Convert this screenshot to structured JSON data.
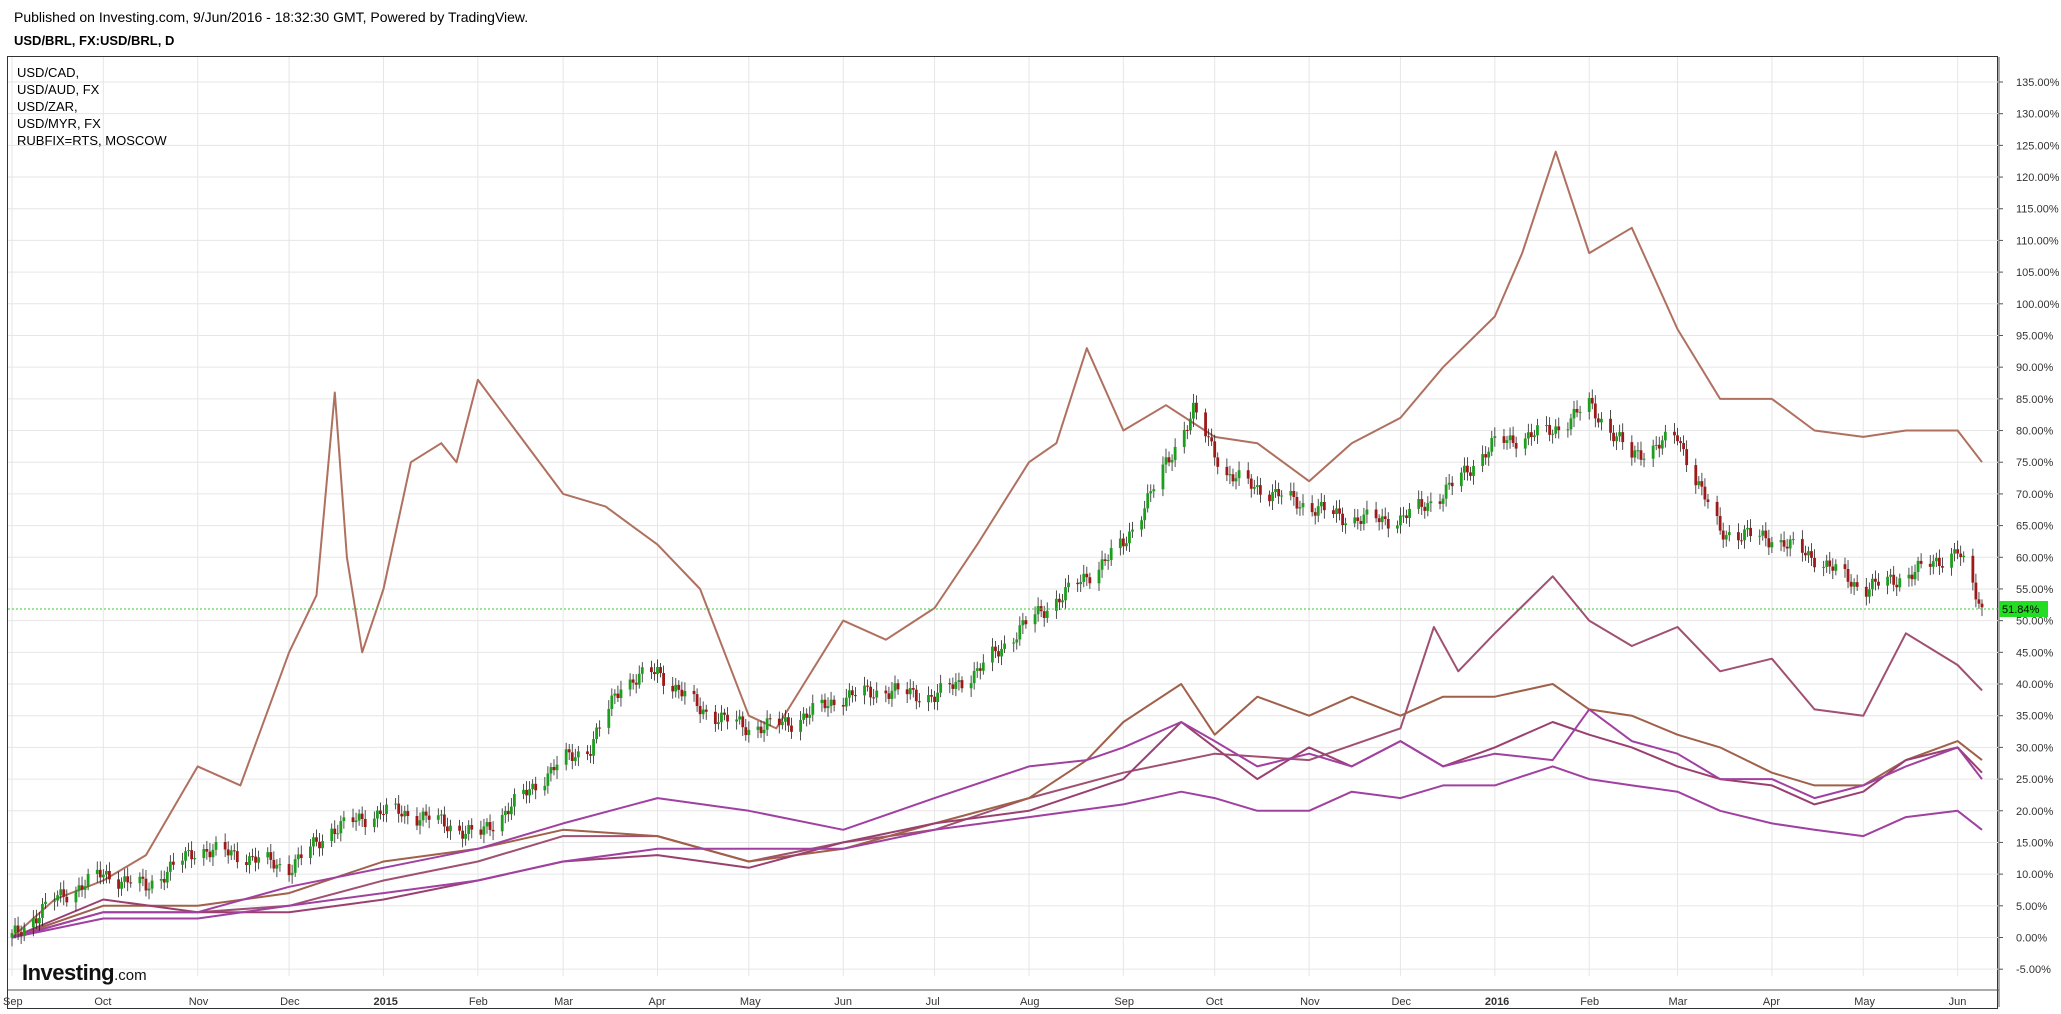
{
  "header": {
    "published": "Published on Investing.com, 9/Jun/2016 - 18:32:30 GMT, Powered by TradingView.",
    "symbol_title": "USD/BRL, FX:USD/BRL, D"
  },
  "legend": [
    "USD/CAD,",
    "USD/AUD, FX",
    "USD/ZAR,",
    "USD/MYR, FX",
    "RUBFIX=RTS, MOSCOW"
  ],
  "logo": {
    "brand": "Investing",
    "suffix": ".com"
  },
  "chart_data": {
    "type": "line",
    "title": "USD/BRL, FX:USD/BRL, D",
    "ylabel": "",
    "y_unit": "%",
    "ylim": [
      -7,
      138
    ],
    "y_ticks": [
      -5,
      0,
      5,
      10,
      15,
      20,
      25,
      30,
      35,
      40,
      45,
      50,
      55,
      60,
      65,
      70,
      75,
      80,
      85,
      90,
      95,
      100,
      105,
      110,
      115,
      120,
      125,
      130,
      135
    ],
    "y_tick_labels": [
      "-5.00%",
      "0.00%",
      "5.00%",
      "10.00%",
      "15.00%",
      "20.00%",
      "25.00%",
      "30.00%",
      "35.00%",
      "40.00%",
      "45.00%",
      "50.00%",
      "55.00%",
      "60.00%",
      "65.00%",
      "70.00%",
      "75.00%",
      "80.00%",
      "85.00%",
      "90.00%",
      "95.00%",
      "100.00%",
      "105.00%",
      "110.00%",
      "115.00%",
      "120.00%",
      "125.00%",
      "130.00%",
      "135.00%"
    ],
    "x_start": "2014-09-01",
    "x_end": "2016-06-09",
    "x_ticks": [
      {
        "label": "Sep",
        "date": "2014-09-01",
        "bold": false
      },
      {
        "label": "Oct",
        "date": "2014-10-01",
        "bold": false
      },
      {
        "label": "Nov",
        "date": "2014-11-01",
        "bold": false
      },
      {
        "label": "Dec",
        "date": "2014-12-01",
        "bold": false
      },
      {
        "label": "2015",
        "date": "2015-01-01",
        "bold": true
      },
      {
        "label": "Feb",
        "date": "2015-02-01",
        "bold": false
      },
      {
        "label": "Mar",
        "date": "2015-03-01",
        "bold": false
      },
      {
        "label": "Apr",
        "date": "2015-04-01",
        "bold": false
      },
      {
        "label": "May",
        "date": "2015-05-01",
        "bold": false
      },
      {
        "label": "Jun",
        "date": "2015-06-01",
        "bold": false
      },
      {
        "label": "Jul",
        "date": "2015-07-01",
        "bold": false
      },
      {
        "label": "Aug",
        "date": "2015-08-01",
        "bold": false
      },
      {
        "label": "Sep",
        "date": "2015-09-01",
        "bold": false
      },
      {
        "label": "Oct",
        "date": "2015-10-01",
        "bold": false
      },
      {
        "label": "Nov",
        "date": "2015-11-01",
        "bold": false
      },
      {
        "label": "Dec",
        "date": "2015-12-01",
        "bold": false
      },
      {
        "label": "2016",
        "date": "2016-01-01",
        "bold": true
      },
      {
        "label": "Feb",
        "date": "2016-02-01",
        "bold": false
      },
      {
        "label": "Mar",
        "date": "2016-03-01",
        "bold": false
      },
      {
        "label": "Apr",
        "date": "2016-04-01",
        "bold": false
      },
      {
        "label": "May",
        "date": "2016-05-01",
        "bold": false
      },
      {
        "label": "Jun",
        "date": "2016-06-01",
        "bold": false
      }
    ],
    "grid": true,
    "current_value": 51.84,
    "current_value_label": "51.84%",
    "colors": {
      "candle_up": "#1e9e1e",
      "candle_down": "#9e1a1a",
      "current_line": "#33cc33",
      "current_badge": "#22dd22",
      "grid": "#e6e6e6"
    },
    "series": [
      {
        "type": "candlestick",
        "color": "#1e9e1e",
        "x": [
          "2014-09-01",
          "2014-09-15",
          "2014-10-01",
          "2014-10-15",
          "2014-11-01",
          "2014-11-15",
          "2014-12-01",
          "2014-12-15",
          "2015-01-01",
          "2015-01-15",
          "2015-02-01",
          "2015-02-15",
          "2015-03-01",
          "2015-03-10",
          "2015-03-20",
          "2015-04-01",
          "2015-04-15",
          "2015-05-01",
          "2015-05-15",
          "2015-06-01",
          "2015-06-15",
          "2015-07-01",
          "2015-07-15",
          "2015-08-01",
          "2015-08-15",
          "2015-09-01",
          "2015-09-10",
          "2015-09-24",
          "2015-10-05",
          "2015-10-15",
          "2015-11-01",
          "2015-11-15",
          "2015-12-01",
          "2015-12-15",
          "2016-01-01",
          "2016-01-20",
          "2016-02-01",
          "2016-02-15",
          "2016-03-01",
          "2016-03-15",
          "2016-04-01",
          "2016-04-15",
          "2016-05-01",
          "2016-05-15",
          "2016-06-01",
          "2016-06-09"
        ],
        "values": [
          0,
          6,
          10,
          8,
          14,
          13,
          11,
          17,
          20,
          19,
          16,
          22,
          28,
          30,
          40,
          42,
          36,
          33,
          34,
          38,
          39,
          38,
          42,
          50,
          55,
          62,
          70,
          83,
          73,
          71,
          68,
          66,
          66,
          70,
          78,
          80,
          84,
          76,
          79,
          64,
          63,
          60,
          55,
          57,
          61,
          51.84
        ]
      },
      {
        "color": "#b07060",
        "x": [
          "2014-09-01",
          "2014-09-15",
          "2014-10-01",
          "2014-10-15",
          "2014-11-01",
          "2014-11-15",
          "2014-12-01",
          "2014-12-10",
          "2014-12-16",
          "2014-12-20",
          "2014-12-25",
          "2015-01-01",
          "2015-01-10",
          "2015-01-20",
          "2015-01-25",
          "2015-02-01",
          "2015-02-15",
          "2015-03-01",
          "2015-03-15",
          "2015-04-01",
          "2015-04-15",
          "2015-05-01",
          "2015-05-10",
          "2015-06-01",
          "2015-06-15",
          "2015-07-01",
          "2015-07-15",
          "2015-08-01",
          "2015-08-10",
          "2015-08-20",
          "2015-09-01",
          "2015-09-15",
          "2015-10-01",
          "2015-10-15",
          "2015-11-01",
          "2015-11-15",
          "2015-12-01",
          "2015-12-15",
          "2016-01-01",
          "2016-01-10",
          "2016-01-21",
          "2016-02-01",
          "2016-02-15",
          "2016-03-01",
          "2016-03-15",
          "2016-04-01",
          "2016-04-15",
          "2016-05-01",
          "2016-05-15",
          "2016-06-01",
          "2016-06-09"
        ],
        "values": [
          0,
          6,
          9,
          13,
          27,
          24,
          45,
          54,
          86,
          60,
          45,
          55,
          75,
          78,
          75,
          88,
          79,
          70,
          68,
          62,
          55,
          35,
          33,
          50,
          47,
          52,
          62,
          75,
          78,
          93,
          80,
          84,
          79,
          78,
          72,
          78,
          82,
          90,
          98,
          108,
          124,
          108,
          112,
          96,
          85,
          85,
          80,
          79,
          80,
          80,
          75
        ]
      },
      {
        "color": "#a05070",
        "x": [
          "2014-09-01",
          "2014-10-01",
          "2014-11-01",
          "2014-12-01",
          "2015-01-01",
          "2015-02-01",
          "2015-03-01",
          "2015-04-01",
          "2015-05-01",
          "2015-06-01",
          "2015-07-01",
          "2015-08-01",
          "2015-09-01",
          "2015-10-01",
          "2015-11-01",
          "2015-12-01",
          "2015-12-12",
          "2015-12-20",
          "2016-01-01",
          "2016-01-20",
          "2016-02-01",
          "2016-02-15",
          "2016-03-01",
          "2016-03-15",
          "2016-04-01",
          "2016-04-15",
          "2016-05-01",
          "2016-05-15",
          "2016-06-01",
          "2016-06-09"
        ],
        "values": [
          0,
          4,
          4,
          5,
          9,
          12,
          16,
          16,
          12,
          15,
          17,
          22,
          26,
          29,
          28,
          33,
          49,
          42,
          48,
          57,
          50,
          46,
          49,
          42,
          44,
          36,
          35,
          48,
          43,
          39
        ]
      },
      {
        "color": "#a0604a",
        "x": [
          "2014-09-01",
          "2014-10-01",
          "2014-11-01",
          "2014-12-01",
          "2015-01-01",
          "2015-02-01",
          "2015-03-01",
          "2015-04-01",
          "2015-05-01",
          "2015-06-01",
          "2015-07-01",
          "2015-08-01",
          "2015-08-20",
          "2015-09-01",
          "2015-09-20",
          "2015-10-01",
          "2015-10-15",
          "2015-11-01",
          "2015-11-15",
          "2015-12-01",
          "2015-12-15",
          "2016-01-01",
          "2016-01-20",
          "2016-02-01",
          "2016-02-15",
          "2016-03-01",
          "2016-03-15",
          "2016-04-01",
          "2016-04-15",
          "2016-05-01",
          "2016-05-15",
          "2016-06-01",
          "2016-06-09"
        ],
        "values": [
          0,
          5,
          5,
          7,
          12,
          14,
          17,
          16,
          12,
          14,
          18,
          22,
          28,
          34,
          40,
          32,
          38,
          35,
          38,
          35,
          38,
          38,
          40,
          36,
          35,
          32,
          30,
          26,
          24,
          24,
          28,
          31,
          28
        ]
      },
      {
        "color": "#9a4070",
        "x": [
          "2014-09-01",
          "2014-10-01",
          "2014-11-01",
          "2014-12-01",
          "2015-01-01",
          "2015-02-01",
          "2015-03-01",
          "2015-04-01",
          "2015-05-01",
          "2015-06-01",
          "2015-07-01",
          "2015-08-01",
          "2015-09-01",
          "2015-09-20",
          "2015-10-01",
          "2015-10-15",
          "2015-11-01",
          "2015-11-15",
          "2015-12-01",
          "2015-12-15",
          "2016-01-01",
          "2016-01-20",
          "2016-02-01",
          "2016-02-15",
          "2016-03-01",
          "2016-03-15",
          "2016-04-01",
          "2016-04-15",
          "2016-05-01",
          "2016-05-15",
          "2016-06-01",
          "2016-06-09"
        ],
        "values": [
          0,
          6,
          4,
          4,
          6,
          9,
          12,
          13,
          11,
          15,
          18,
          20,
          25,
          34,
          30,
          25,
          30,
          27,
          31,
          27,
          30,
          34,
          32,
          30,
          27,
          25,
          24,
          21,
          23,
          28,
          30,
          26
        ]
      },
      {
        "color": "#a040a0",
        "x": [
          "2014-09-01",
          "2014-10-01",
          "2014-11-01",
          "2014-12-01",
          "2015-01-01",
          "2015-02-01",
          "2015-03-01",
          "2015-04-01",
          "2015-05-01",
          "2015-06-01",
          "2015-07-01",
          "2015-08-01",
          "2015-08-20",
          "2015-09-01",
          "2015-09-20",
          "2015-10-01",
          "2015-10-15",
          "2015-11-01",
          "2015-11-15",
          "2015-12-01",
          "2015-12-15",
          "2016-01-01",
          "2016-01-20",
          "2016-02-01",
          "2016-02-15",
          "2016-03-01",
          "2016-03-15",
          "2016-04-01",
          "2016-04-15",
          "2016-05-01",
          "2016-05-15",
          "2016-06-01",
          "2016-06-09"
        ],
        "values": [
          0,
          4,
          4,
          8,
          11,
          14,
          18,
          22,
          20,
          17,
          22,
          27,
          28,
          30,
          34,
          31,
          27,
          29,
          27,
          31,
          27,
          29,
          28,
          36,
          31,
          29,
          25,
          25,
          22,
          24,
          27,
          30,
          25
        ]
      },
      {
        "color": "#a040a0",
        "x": [
          "2014-09-01",
          "2014-10-01",
          "2014-11-01",
          "2014-12-01",
          "2015-01-01",
          "2015-02-01",
          "2015-03-01",
          "2015-04-01",
          "2015-05-01",
          "2015-06-01",
          "2015-07-01",
          "2015-08-01",
          "2015-09-01",
          "2015-09-20",
          "2015-10-01",
          "2015-10-15",
          "2015-11-01",
          "2015-11-15",
          "2015-12-01",
          "2015-12-15",
          "2016-01-01",
          "2016-01-20",
          "2016-02-01",
          "2016-02-15",
          "2016-03-01",
          "2016-03-15",
          "2016-04-01",
          "2016-04-15",
          "2016-05-01",
          "2016-05-15",
          "2016-06-01",
          "2016-06-09"
        ],
        "values": [
          0,
          3,
          3,
          5,
          7,
          9,
          12,
          14,
          14,
          14,
          17,
          19,
          21,
          23,
          22,
          20,
          20,
          23,
          22,
          24,
          24,
          27,
          25,
          24,
          23,
          20,
          18,
          17,
          16,
          19,
          20,
          17
        ]
      }
    ]
  }
}
